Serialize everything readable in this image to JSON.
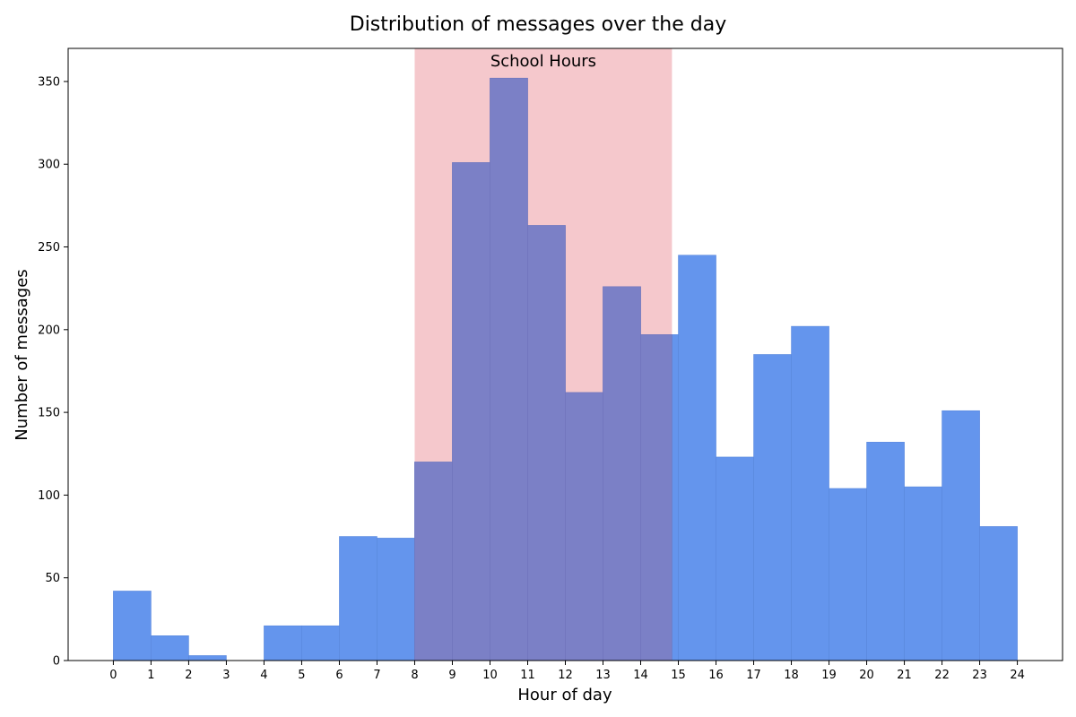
{
  "chart_data": {
    "type": "bar",
    "title": "Distribution of messages over the day",
    "xlabel": "Hour of day",
    "ylabel": "Number of messages",
    "bins": [
      {
        "start": 0,
        "end": 1,
        "count": 42
      },
      {
        "start": 1,
        "end": 2,
        "count": 15
      },
      {
        "start": 2,
        "end": 3,
        "count": 3
      },
      {
        "start": 3,
        "end": 4,
        "count": 0
      },
      {
        "start": 4,
        "end": 5,
        "count": 21
      },
      {
        "start": 5,
        "end": 6,
        "count": 21
      },
      {
        "start": 6,
        "end": 7,
        "count": 75
      },
      {
        "start": 7,
        "end": 8,
        "count": 74
      },
      {
        "start": 8,
        "end": 9,
        "count": 120
      },
      {
        "start": 9,
        "end": 10,
        "count": 301
      },
      {
        "start": 10,
        "end": 11,
        "count": 352
      },
      {
        "start": 11,
        "end": 12,
        "count": 263
      },
      {
        "start": 12,
        "end": 13,
        "count": 162
      },
      {
        "start": 13,
        "end": 14,
        "count": 226
      },
      {
        "start": 14,
        "end": 15,
        "count": 197
      },
      {
        "start": 15,
        "end": 16,
        "count": 245
      },
      {
        "start": 16,
        "end": 17,
        "count": 123
      },
      {
        "start": 17,
        "end": 18,
        "count": 185
      },
      {
        "start": 18,
        "end": 19,
        "count": 202
      },
      {
        "start": 19,
        "end": 20,
        "count": 104
      },
      {
        "start": 20,
        "end": 21,
        "count": 132
      },
      {
        "start": 21,
        "end": 22,
        "count": 105
      },
      {
        "start": 22,
        "end": 23,
        "count": 151
      },
      {
        "start": 23,
        "end": 24,
        "count": 81
      }
    ],
    "xticks": [
      0,
      1,
      2,
      3,
      4,
      5,
      6,
      7,
      8,
      9,
      10,
      11,
      12,
      13,
      14,
      15,
      16,
      17,
      18,
      19,
      20,
      21,
      22,
      23,
      24
    ],
    "yticks": [
      0,
      50,
      100,
      150,
      200,
      250,
      300,
      350
    ],
    "xlim": [
      -1.2,
      25.2
    ],
    "ylim": [
      0,
      370
    ],
    "shaded_region": {
      "label": "School Hours",
      "start": 8,
      "end": 14.83,
      "color": "#f0b3b8"
    },
    "bar_color": "#6495ed",
    "grid": false,
    "legend": "none"
  }
}
